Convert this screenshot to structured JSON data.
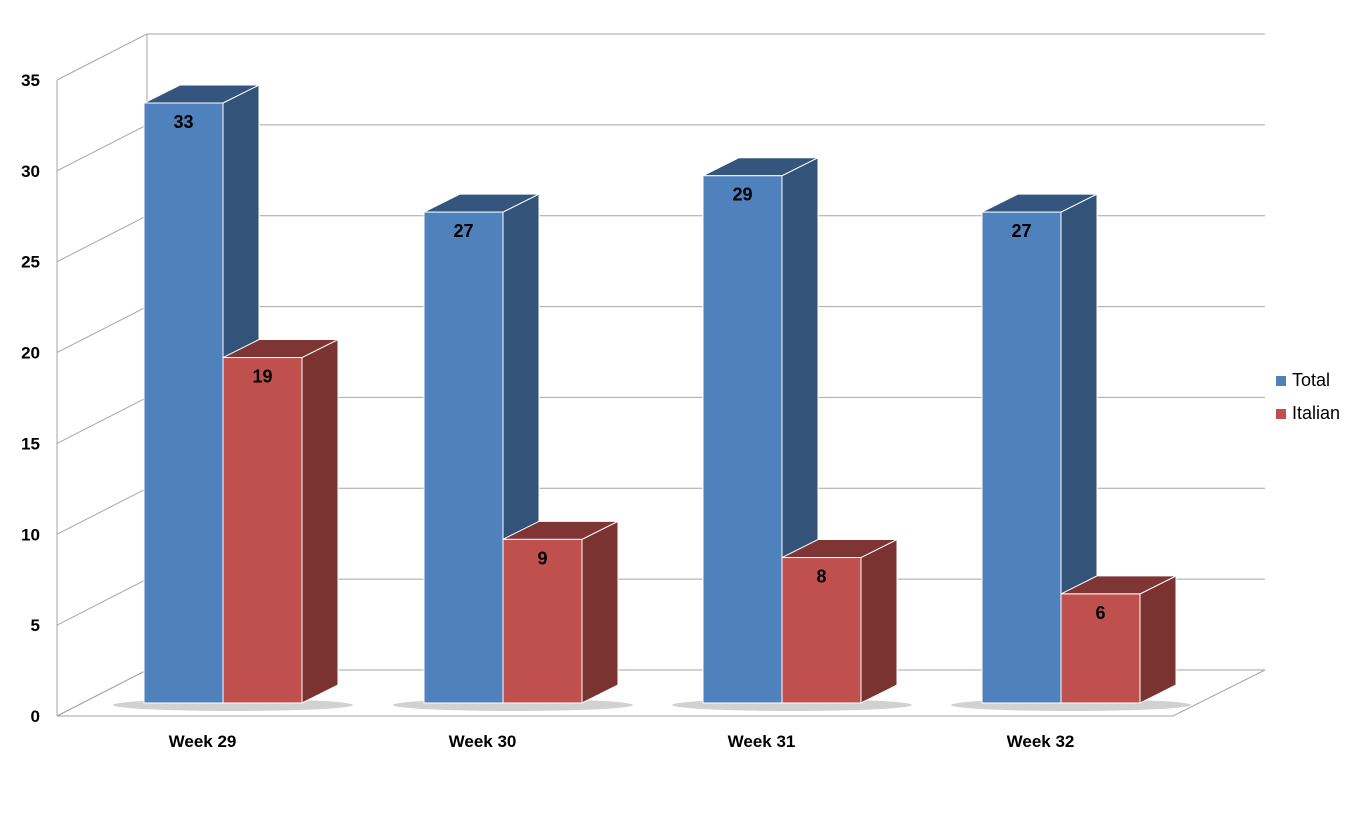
{
  "chart_data": {
    "type": "bar",
    "categories": [
      "Week 29",
      "Week 30",
      "Week 31",
      "Week 32"
    ],
    "series": [
      {
        "name": "Total",
        "values": [
          33,
          27,
          29,
          27
        ],
        "color": "#4F81BD"
      },
      {
        "name": "Italian",
        "values": [
          19,
          9,
          8,
          6
        ],
        "color": "#C0504D"
      }
    ],
    "ylim": [
      0,
      35
    ],
    "yticks": [
      0,
      5,
      10,
      15,
      20,
      25,
      30,
      35
    ],
    "grid": true,
    "legend_position": "right",
    "style": "3d-clustered-column",
    "title": "",
    "xlabel": "",
    "ylabel": ""
  }
}
